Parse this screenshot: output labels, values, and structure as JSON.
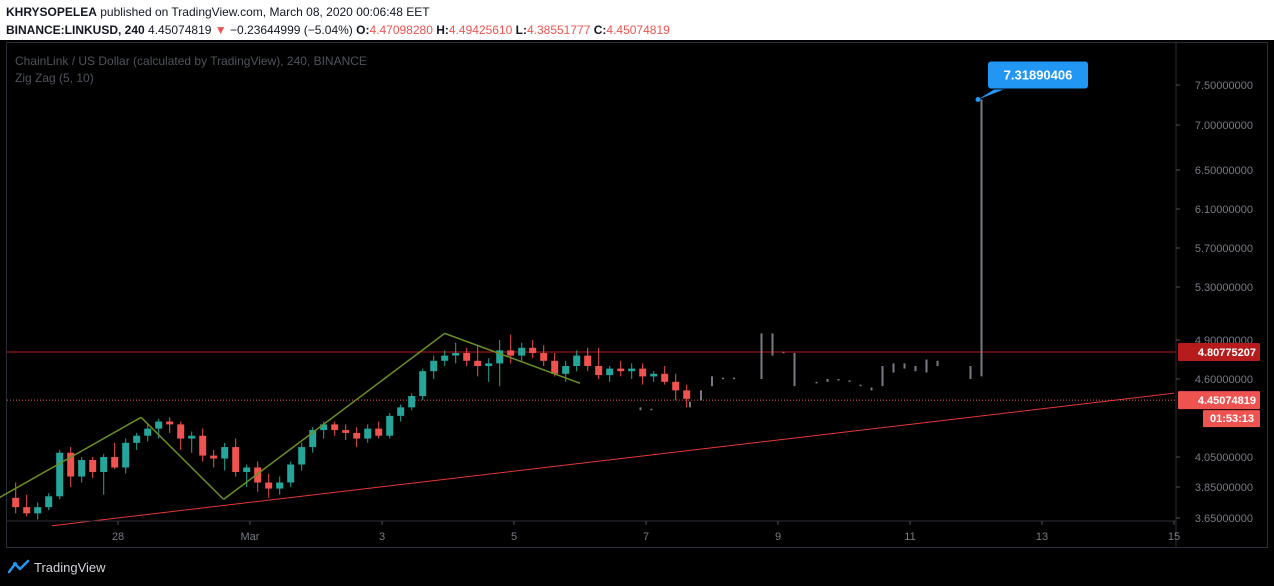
{
  "header": {
    "author": "KHRYSOPELEA",
    "published": "published on TradingView.com, March 08, 2020 00:06:48 EET",
    "symbol": "BINANCE:LINKUSD, 240",
    "last": "4.45074819",
    "change_arrow": "▼",
    "change": "−0.23644999 (−5.04%)",
    "o_label": "O:",
    "o_value": "4.47098280",
    "h_label": "H:",
    "h_value": "4.49425610",
    "l_label": "L:",
    "l_value": "4.38551777",
    "c_label": "C:",
    "c_value": "4.45074819"
  },
  "legend": {
    "title": "ChainLink / US Dollar (calculated by TradingView), 240, BINANCE",
    "indicator": "Zig Zag (5, 10)"
  },
  "footer": {
    "brand": "TradingView"
  },
  "colors": {
    "up": "#26a69a",
    "down": "#ef5350",
    "zigzag": "#6b8e23",
    "hline": "#b71c1c",
    "trend": "#e53935",
    "label_blue": "#2196f3",
    "projection": "#787b86"
  },
  "chart_data": {
    "type": "candlestick",
    "price_axis_ticks": [
      "7.50000000",
      "7.00000000",
      "6.50000000",
      "6.10000000",
      "5.70000000",
      "5.30000000",
      "4.90000000",
      "4.60000000",
      "4.05000000",
      "3.85000000",
      "3.65000000"
    ],
    "time_axis_ticks": [
      "28",
      "Mar",
      "3",
      "5",
      "7",
      "9",
      "11",
      "13",
      "15"
    ],
    "horizontal_line": {
      "price": 4.80775207,
      "label": "4.80775207"
    },
    "last_price": {
      "price": 4.45074819,
      "label": "4.45074819",
      "countdown": "01:53:13"
    },
    "target": {
      "label": "7.31890406",
      "price": 7.31890406
    },
    "trendline": {
      "from": {
        "x": "Feb 27",
        "y": 3.6
      },
      "to": {
        "x": "Mar 15",
        "y": 4.5
      }
    },
    "zigzag": [
      {
        "x": "Feb 27",
        "y": 3.66
      },
      {
        "x": "Feb 29",
        "y": 4.33
      },
      {
        "x": "Mar 1",
        "y": 3.77
      },
      {
        "x": "Mar 4",
        "y": 4.95
      },
      {
        "x": "Mar 6",
        "y": 4.57
      }
    ],
    "candles": [
      {
        "o": 3.78,
        "h": 3.88,
        "l": 3.68,
        "c": 3.72
      },
      {
        "o": 3.72,
        "h": 3.8,
        "l": 3.66,
        "c": 3.68
      },
      {
        "o": 3.68,
        "h": 3.75,
        "l": 3.64,
        "c": 3.72
      },
      {
        "o": 3.72,
        "h": 3.81,
        "l": 3.7,
        "c": 3.79
      },
      {
        "o": 3.79,
        "h": 4.1,
        "l": 3.77,
        "c": 4.08
      },
      {
        "o": 4.08,
        "h": 4.12,
        "l": 3.85,
        "c": 3.92
      },
      {
        "o": 3.92,
        "h": 4.05,
        "l": 3.88,
        "c": 4.03
      },
      {
        "o": 4.03,
        "h": 4.05,
        "l": 3.91,
        "c": 3.95
      },
      {
        "o": 3.95,
        "h": 4.07,
        "l": 3.8,
        "c": 4.05
      },
      {
        "o": 4.05,
        "h": 4.15,
        "l": 3.97,
        "c": 3.98
      },
      {
        "o": 3.98,
        "h": 4.18,
        "l": 3.94,
        "c": 4.15
      },
      {
        "o": 4.15,
        "h": 4.22,
        "l": 4.1,
        "c": 4.2
      },
      {
        "o": 4.2,
        "h": 4.28,
        "l": 4.16,
        "c": 4.25
      },
      {
        "o": 4.25,
        "h": 4.32,
        "l": 4.18,
        "c": 4.3
      },
      {
        "o": 4.3,
        "h": 4.33,
        "l": 4.22,
        "c": 4.28
      },
      {
        "o": 4.28,
        "h": 4.3,
        "l": 4.1,
        "c": 4.18
      },
      {
        "o": 4.18,
        "h": 4.23,
        "l": 4.08,
        "c": 4.2
      },
      {
        "o": 4.2,
        "h": 4.25,
        "l": 4.02,
        "c": 4.06
      },
      {
        "o": 4.06,
        "h": 4.1,
        "l": 3.98,
        "c": 4.04
      },
      {
        "o": 4.04,
        "h": 4.15,
        "l": 3.96,
        "c": 4.12
      },
      {
        "o": 4.12,
        "h": 4.18,
        "l": 3.92,
        "c": 3.95
      },
      {
        "o": 3.95,
        "h": 4.0,
        "l": 3.85,
        "c": 3.98
      },
      {
        "o": 3.98,
        "h": 4.02,
        "l": 3.82,
        "c": 3.88
      },
      {
        "o": 3.88,
        "h": 3.94,
        "l": 3.78,
        "c": 3.84
      },
      {
        "o": 3.84,
        "h": 3.92,
        "l": 3.8,
        "c": 3.88
      },
      {
        "o": 3.88,
        "h": 4.02,
        "l": 3.85,
        "c": 4.0
      },
      {
        "o": 4.0,
        "h": 4.15,
        "l": 3.96,
        "c": 4.12
      },
      {
        "o": 4.12,
        "h": 4.26,
        "l": 4.08,
        "c": 4.24
      },
      {
        "o": 4.24,
        "h": 4.3,
        "l": 4.18,
        "c": 4.28
      },
      {
        "o": 4.28,
        "h": 4.3,
        "l": 4.2,
        "c": 4.24
      },
      {
        "o": 4.24,
        "h": 4.28,
        "l": 4.17,
        "c": 4.22
      },
      {
        "o": 4.22,
        "h": 4.26,
        "l": 4.12,
        "c": 4.18
      },
      {
        "o": 4.18,
        "h": 4.28,
        "l": 4.15,
        "c": 4.25
      },
      {
        "o": 4.25,
        "h": 4.3,
        "l": 4.18,
        "c": 4.2
      },
      {
        "o": 4.2,
        "h": 4.36,
        "l": 4.18,
        "c": 4.34
      },
      {
        "o": 4.34,
        "h": 4.42,
        "l": 4.3,
        "c": 4.4
      },
      {
        "o": 4.4,
        "h": 4.5,
        "l": 4.38,
        "c": 4.48
      },
      {
        "o": 4.48,
        "h": 4.68,
        "l": 4.45,
        "c": 4.66
      },
      {
        "o": 4.66,
        "h": 4.78,
        "l": 4.6,
        "c": 4.74
      },
      {
        "o": 4.74,
        "h": 4.82,
        "l": 4.7,
        "c": 4.78
      },
      {
        "o": 4.78,
        "h": 4.88,
        "l": 4.72,
        "c": 4.8
      },
      {
        "o": 4.8,
        "h": 4.84,
        "l": 4.7,
        "c": 4.74
      },
      {
        "o": 4.74,
        "h": 4.86,
        "l": 4.62,
        "c": 4.7
      },
      {
        "o": 4.7,
        "h": 4.76,
        "l": 4.58,
        "c": 4.72
      },
      {
        "o": 4.72,
        "h": 4.9,
        "l": 4.55,
        "c": 4.82
      },
      {
        "o": 4.82,
        "h": 4.94,
        "l": 4.72,
        "c": 4.78
      },
      {
        "o": 4.78,
        "h": 4.88,
        "l": 4.74,
        "c": 4.84
      },
      {
        "o": 4.84,
        "h": 4.9,
        "l": 4.76,
        "c": 4.8
      },
      {
        "o": 4.8,
        "h": 4.86,
        "l": 4.7,
        "c": 4.74
      },
      {
        "o": 4.74,
        "h": 4.8,
        "l": 4.62,
        "c": 4.64
      },
      {
        "o": 4.64,
        "h": 4.74,
        "l": 4.58,
        "c": 4.7
      },
      {
        "o": 4.7,
        "h": 4.82,
        "l": 4.66,
        "c": 4.78
      },
      {
        "o": 4.78,
        "h": 4.84,
        "l": 4.66,
        "c": 4.7
      },
      {
        "o": 4.7,
        "h": 4.84,
        "l": 4.6,
        "c": 4.63
      },
      {
        "o": 4.63,
        "h": 4.7,
        "l": 4.58,
        "c": 4.68
      },
      {
        "o": 4.68,
        "h": 4.74,
        "l": 4.62,
        "c": 4.66
      },
      {
        "o": 4.66,
        "h": 4.72,
        "l": 4.6,
        "c": 4.68
      },
      {
        "o": 4.68,
        "h": 4.72,
        "l": 4.56,
        "c": 4.62
      },
      {
        "o": 4.62,
        "h": 4.66,
        "l": 4.58,
        "c": 4.64
      },
      {
        "o": 4.64,
        "h": 4.7,
        "l": 4.56,
        "c": 4.58
      },
      {
        "o": 4.58,
        "h": 4.64,
        "l": 4.45,
        "c": 4.52
      },
      {
        "o": 4.52,
        "h": 4.56,
        "l": 4.4,
        "c": 4.46
      }
    ],
    "projection_bars": [
      {
        "x": "Mar 7",
        "lo": 4.38,
        "hi": 4.4
      },
      {
        "x": "Mar 7",
        "lo": 4.38,
        "hi": 4.39
      },
      {
        "x": "Mar 8",
        "lo": 4.4,
        "hi": 4.44
      },
      {
        "x": "Mar 8",
        "lo": 4.45,
        "hi": 4.52
      },
      {
        "x": "Mar 8",
        "lo": 4.55,
        "hi": 4.62
      },
      {
        "x": "Mar 8",
        "lo": 4.6,
        "hi": 4.61
      },
      {
        "x": "Mar 8",
        "lo": 4.6,
        "hi": 4.61
      },
      {
        "x": "Mar 9",
        "lo": 4.6,
        "hi": 4.95
      },
      {
        "x": "Mar 9",
        "lo": 4.78,
        "hi": 4.95
      },
      {
        "x": "Mar 9",
        "lo": 4.8,
        "hi": 4.81
      },
      {
        "x": "Mar 9",
        "lo": 4.55,
        "hi": 4.8
      },
      {
        "x": "Mar 10",
        "lo": 4.57,
        "hi": 4.58
      },
      {
        "x": "Mar 10",
        "lo": 4.58,
        "hi": 4.6
      },
      {
        "x": "Mar 10",
        "lo": 4.59,
        "hi": 4.6
      },
      {
        "x": "Mar 10",
        "lo": 4.58,
        "hi": 4.59
      },
      {
        "x": "Mar 10",
        "lo": 4.55,
        "hi": 4.56
      },
      {
        "x": "Mar 10",
        "lo": 4.52,
        "hi": 4.54
      },
      {
        "x": "Mar 11",
        "lo": 4.55,
        "hi": 4.7
      },
      {
        "x": "Mar 11",
        "lo": 4.65,
        "hi": 4.72
      },
      {
        "x": "Mar 11",
        "lo": 4.68,
        "hi": 4.72
      },
      {
        "x": "Mar 11",
        "lo": 4.66,
        "hi": 4.7
      },
      {
        "x": "Mar 11",
        "lo": 4.65,
        "hi": 4.75
      },
      {
        "x": "Mar 11",
        "lo": 4.7,
        "hi": 4.74
      },
      {
        "x": "Mar 12",
        "lo": 4.6,
        "hi": 4.7
      },
      {
        "x": "Mar 12",
        "lo": 4.62,
        "hi": 7.31890406
      }
    ]
  }
}
